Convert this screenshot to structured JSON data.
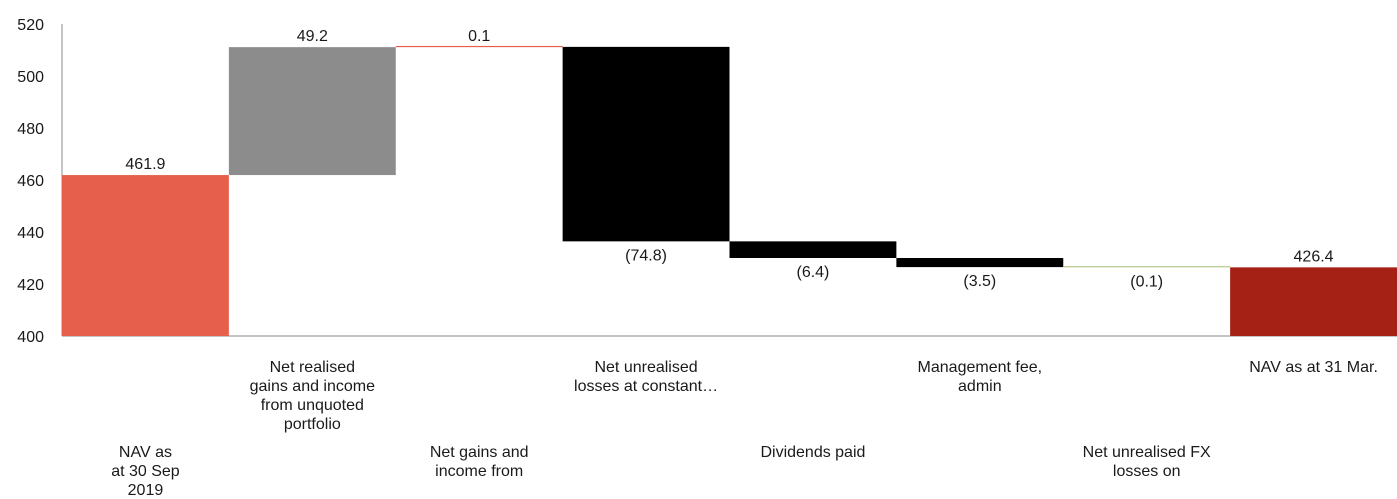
{
  "chart_data": {
    "type": "waterfall",
    "title": "",
    "xlabel": "",
    "ylabel": "",
    "ylim": [
      400,
      520
    ],
    "yticks": [
      400,
      420,
      440,
      460,
      480,
      500,
      520
    ],
    "grid": false,
    "legend": "none",
    "categories": [
      "NAV as at 30 Sep 2019",
      "Net realised gains and income from unquoted portfolio",
      "Net gains and income from",
      "Net unrealised losses at constant…",
      "Dividends paid",
      "Management fee, admin",
      "Net unrealised FX losses on",
      "NAV as at 31 Mar."
    ],
    "values": [
      461.9,
      49.2,
      0.1,
      -74.8,
      -6.4,
      -3.5,
      -0.1,
      426.4
    ],
    "bars": [
      {
        "kind": "total",
        "start": 400,
        "end": 461.9,
        "value_label": "461.9",
        "color": "#e55f4c"
      },
      {
        "kind": "delta",
        "start": 461.9,
        "end": 511.1,
        "value_label": "49.2",
        "color": "#8c8c8c"
      },
      {
        "kind": "delta",
        "start": 511.1,
        "end": 511.2,
        "value_label": "0.1",
        "color": "#e55f4c"
      },
      {
        "kind": "delta",
        "start": 511.2,
        "end": 436.4,
        "value_label": "(74.8)",
        "color": "#000000"
      },
      {
        "kind": "delta",
        "start": 436.4,
        "end": 430.0,
        "value_label": "(6.4)",
        "color": "#000000"
      },
      {
        "kind": "delta",
        "start": 430.0,
        "end": 426.5,
        "value_label": "(3.5)",
        "color": "#000000"
      },
      {
        "kind": "delta",
        "start": 426.5,
        "end": 426.4,
        "value_label": "(0.1)",
        "color": "#b5c98a"
      },
      {
        "kind": "total",
        "start": 400,
        "end": 426.4,
        "value_label": "426.4",
        "color": "#a52116"
      }
    ],
    "category_label_lines": [
      {
        "lines": [
          "NAV as",
          "at 30 Sep",
          "2019"
        ],
        "row": "lower"
      },
      {
        "lines": [
          "Net realised",
          "gains and income",
          "from unquoted",
          "portfolio"
        ],
        "row": "upper"
      },
      {
        "lines": [
          "Net gains and",
          "income from"
        ],
        "row": "lower"
      },
      {
        "lines": [
          "Net unrealised",
          "losses at constant…"
        ],
        "row": "upper"
      },
      {
        "lines": [
          "Dividends paid"
        ],
        "row": "lower"
      },
      {
        "lines": [
          "Management fee,",
          "admin"
        ],
        "row": "upper"
      },
      {
        "lines": [
          "Net unrealised FX",
          "losses on"
        ],
        "row": "lower"
      },
      {
        "lines": [
          "NAV as at 31 Mar."
        ],
        "row": "upper"
      }
    ]
  }
}
